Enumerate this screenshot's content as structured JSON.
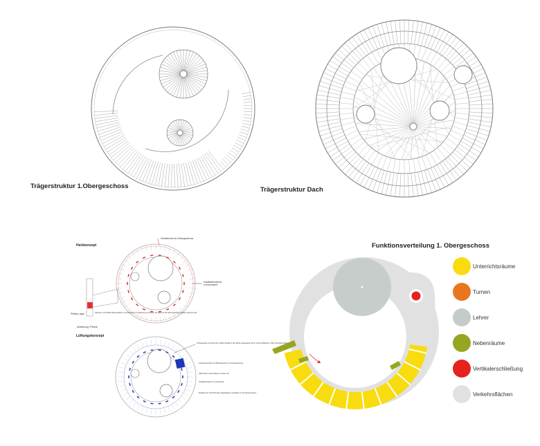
{
  "panels": {
    "floor_structure": {
      "title": "Trägerstruktur 1.Obergeschoss"
    },
    "roof_structure": {
      "title": "Trägerstruktur Dach"
    },
    "heating": {
      "title": "Heizkonzept",
      "notes": {
        "top": "Verteilernetz im Kellergeschoss",
        "right": "Installationskerne in Innenwand",
        "left": "Heizraum mit Pellets Stirling-Motor zur Produktion von Heizung und Strom. der auch für die Warmwasserproduktion genutzt wird",
        "pellet": "Pellets-Lager",
        "fuel": "Anlieferung \"Pellets\""
      }
    },
    "ventilation": {
      "title": "Lüftungskonzept",
      "notes": {
        "top": "Vorbeugende Luft wird über starke Kanäle in den Boden abgesaugt und in einem Erdkanal in das Lüftungszentrale zurückgeführt",
        "mid": "Lüftungszentrale mit Wärmetauscher im Kellergeschoss",
        "abluft": "Abluft strömt aus Klassen in Atrium ab",
        "install": "Installationskerne in Innenwand",
        "bottom": "Einlässe der Frischluft über abgehängte Lochdecke in die Klassenräume"
      }
    },
    "functions": {
      "title": "Funktionsverteilung 1. Obergeschoss",
      "legend": [
        {
          "label": "Unterrichtsräume",
          "color": "#f8dc10"
        },
        {
          "label": "Turnen",
          "color": "#e8761e"
        },
        {
          "label": "Lehrer",
          "color": "#c4cbc9"
        },
        {
          "label": "Nebenräume",
          "color": "#96a623"
        },
        {
          "label": "Vertikalerschließung",
          "color": "#e5221f"
        },
        {
          "label": "Verkehrsflächen",
          "color": "#e1e1e1"
        }
      ]
    }
  }
}
